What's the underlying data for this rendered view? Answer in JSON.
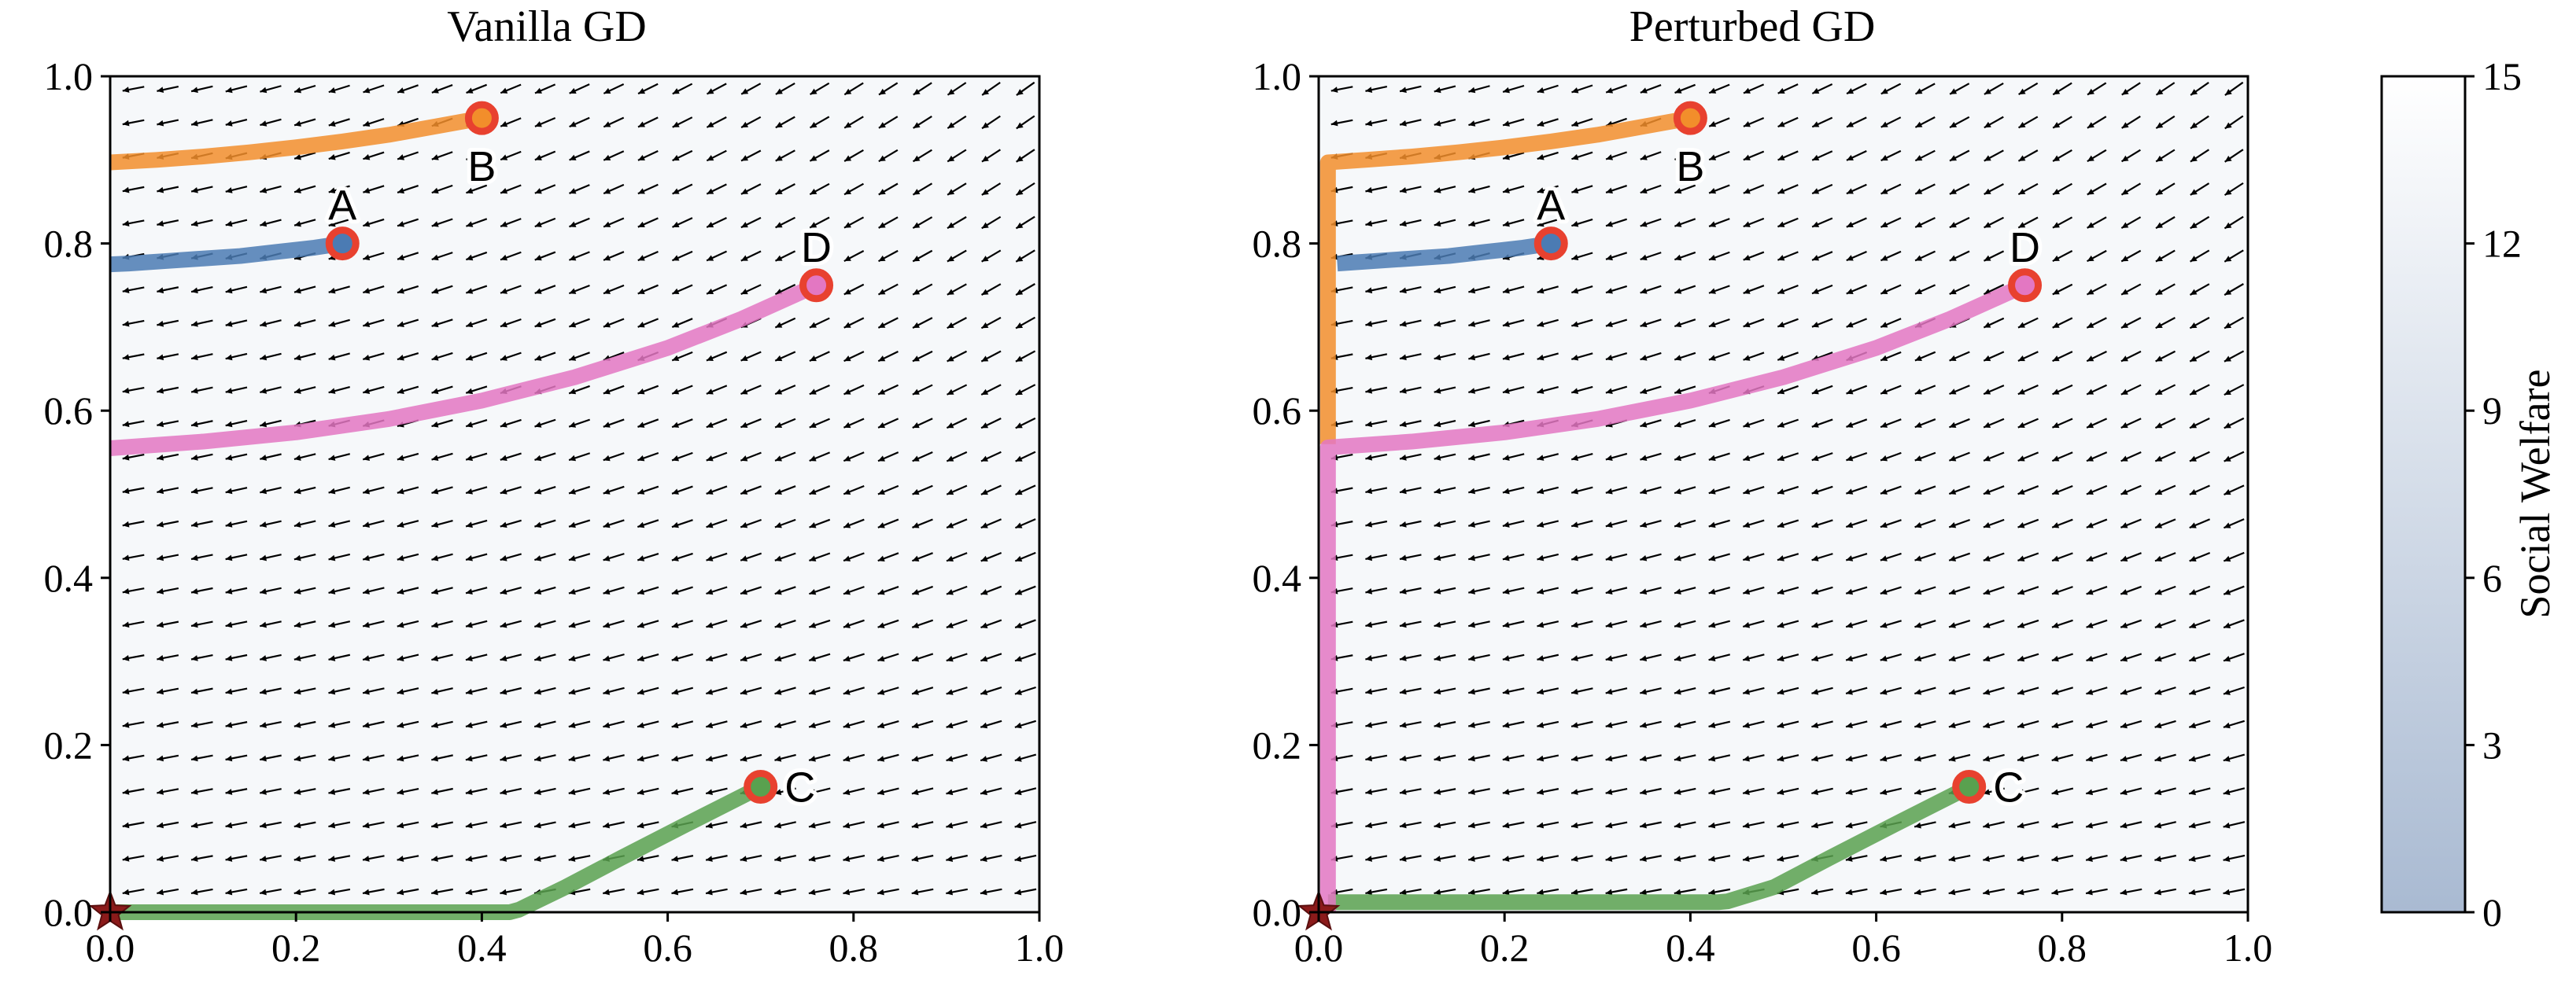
{
  "chart_data": [
    {
      "type": "line",
      "title": "Vanilla GD",
      "xlim": [
        0,
        1
      ],
      "ylim": [
        0,
        1
      ],
      "x_ticks": [
        "0.0",
        "0.2",
        "0.4",
        "0.6",
        "0.8",
        "1.0"
      ],
      "y_ticks": [
        "0.0",
        "0.2",
        "0.4",
        "0.6",
        "0.8",
        "1.0"
      ],
      "background": "filled contour of social welfare with quiver field of gradient arrows",
      "equilibrium_marker": {
        "x": 0.0,
        "y": 0.0,
        "symbol": "star"
      },
      "series": [
        {
          "name": "A",
          "color": "#4b7bb3",
          "start": {
            "x": 0.25,
            "y": 0.8
          },
          "x": [
            0.25,
            0.22,
            0.18,
            0.14,
            0.1,
            0.06,
            0.02,
            0.0
          ],
          "y": [
            0.8,
            0.795,
            0.79,
            0.785,
            0.782,
            0.779,
            0.776,
            0.775
          ]
        },
        {
          "name": "B",
          "color": "#f28e2b",
          "start": {
            "x": 0.4,
            "y": 0.95
          },
          "x": [
            0.4,
            0.35,
            0.3,
            0.25,
            0.2,
            0.15,
            0.1,
            0.05,
            0.0
          ],
          "y": [
            0.95,
            0.94,
            0.93,
            0.922,
            0.915,
            0.909,
            0.904,
            0.9,
            0.897
          ]
        },
        {
          "name": "C",
          "color": "#59a14f",
          "start": {
            "x": 0.7,
            "y": 0.15
          },
          "x": [
            0.7,
            0.62,
            0.55,
            0.49,
            0.44,
            0.43,
            0.3,
            0.15,
            0.0
          ],
          "y": [
            0.15,
            0.105,
            0.065,
            0.03,
            0.003,
            0.0,
            0.0,
            0.0,
            0.0
          ]
        },
        {
          "name": "D",
          "color": "#e377c2",
          "start": {
            "x": 0.76,
            "y": 0.75
          },
          "x": [
            0.76,
            0.68,
            0.6,
            0.5,
            0.4,
            0.3,
            0.2,
            0.1,
            0.0
          ],
          "y": [
            0.75,
            0.71,
            0.675,
            0.64,
            0.612,
            0.59,
            0.574,
            0.563,
            0.555
          ]
        }
      ]
    },
    {
      "type": "line",
      "title": "Perturbed GD",
      "xlim": [
        0,
        1
      ],
      "ylim": [
        0,
        1
      ],
      "x_ticks": [
        "0.0",
        "0.2",
        "0.4",
        "0.6",
        "0.8",
        "1.0"
      ],
      "y_ticks": [
        "0.0",
        "0.2",
        "0.4",
        "0.6",
        "0.8",
        "1.0"
      ],
      "background": "filled contour of social welfare with quiver field of gradient arrows",
      "equilibrium_marker": {
        "x": 0.0,
        "y": 0.0,
        "symbol": "star"
      },
      "series": [
        {
          "name": "A",
          "color": "#4b7bb3",
          "start": {
            "x": 0.25,
            "y": 0.8
          },
          "x": [
            0.25,
            0.22,
            0.18,
            0.14,
            0.1,
            0.06,
            0.02
          ],
          "y": [
            0.8,
            0.795,
            0.79,
            0.785,
            0.782,
            0.779,
            0.776
          ]
        },
        {
          "name": "B",
          "color": "#f28e2b",
          "start": {
            "x": 0.4,
            "y": 0.95
          },
          "x": [
            0.4,
            0.35,
            0.3,
            0.25,
            0.2,
            0.15,
            0.1,
            0.05,
            0.01,
            0.01
          ],
          "y": [
            0.95,
            0.94,
            0.93,
            0.922,
            0.915,
            0.909,
            0.904,
            0.9,
            0.897,
            0.56
          ]
        },
        {
          "name": "C",
          "color": "#59a14f",
          "start": {
            "x": 0.7,
            "y": 0.15
          },
          "x": [
            0.7,
            0.62,
            0.55,
            0.49,
            0.44,
            0.43,
            0.3,
            0.15,
            0.01
          ],
          "y": [
            0.15,
            0.105,
            0.065,
            0.03,
            0.013,
            0.012,
            0.012,
            0.012,
            0.012
          ]
        },
        {
          "name": "D",
          "color": "#e377c2",
          "start": {
            "x": 0.76,
            "y": 0.75
          },
          "x": [
            0.76,
            0.68,
            0.6,
            0.5,
            0.4,
            0.3,
            0.2,
            0.1,
            0.01,
            0.01
          ],
          "y": [
            0.75,
            0.71,
            0.675,
            0.64,
            0.612,
            0.59,
            0.574,
            0.563,
            0.556,
            0.0
          ]
        }
      ]
    }
  ],
  "colorbar": {
    "label": "Social Welfare",
    "range": [
      0,
      15
    ],
    "ticks": [
      "0",
      "3",
      "6",
      "9",
      "12",
      "15"
    ],
    "color_low": "#a9bad2",
    "color_high": "#ffffff"
  },
  "marker_color": "#e8412f"
}
